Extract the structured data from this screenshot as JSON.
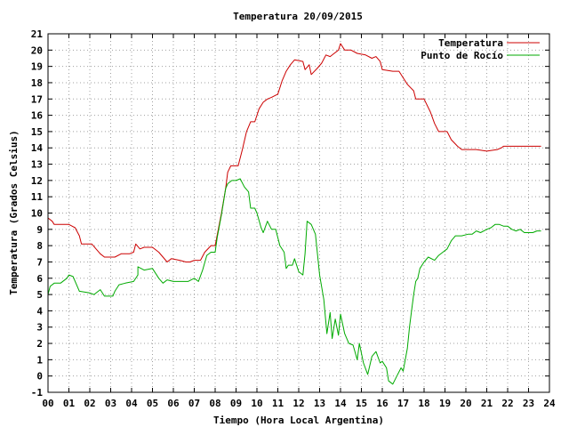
{
  "chart_data": {
    "type": "line",
    "title": "Temperatura 20/09/2015",
    "xlabel": "Tiempo (Hora Local Argentina)",
    "ylabel": "Temperatura (Grados Celsius)",
    "xlim": [
      0,
      24
    ],
    "ylim": [
      -1,
      21
    ],
    "x_ticks": [
      "00",
      "01",
      "02",
      "03",
      "04",
      "05",
      "06",
      "07",
      "08",
      "09",
      "10",
      "11",
      "12",
      "13",
      "14",
      "15",
      "16",
      "17",
      "18",
      "19",
      "20",
      "21",
      "22",
      "23",
      "24"
    ],
    "y_ticks": [
      "-1",
      "0",
      "1",
      "2",
      "3",
      "4",
      "5",
      "6",
      "7",
      "8",
      "9",
      "10",
      "11",
      "12",
      "13",
      "14",
      "15",
      "16",
      "17",
      "18",
      "19",
      "20",
      "21"
    ],
    "grid": true,
    "legend_position": "top-right",
    "series": [
      {
        "name": "Temperatura",
        "color": "#cc0000",
        "points": [
          [
            0,
            9.7
          ],
          [
            0.2,
            9.5
          ],
          [
            0.3,
            9.3
          ],
          [
            1,
            9.3
          ],
          [
            1.3,
            9.1
          ],
          [
            1.5,
            8.6
          ],
          [
            1.6,
            8.1
          ],
          [
            2.1,
            8.1
          ],
          [
            2.3,
            7.8
          ],
          [
            2.5,
            7.5
          ],
          [
            2.7,
            7.3
          ],
          [
            3.2,
            7.3
          ],
          [
            3.5,
            7.5
          ],
          [
            3.9,
            7.5
          ],
          [
            4.1,
            7.6
          ],
          [
            4.2,
            8.1
          ],
          [
            4.4,
            7.8
          ],
          [
            4.6,
            7.9
          ],
          [
            5,
            7.9
          ],
          [
            5.3,
            7.6
          ],
          [
            5.5,
            7.3
          ],
          [
            5.7,
            7.0
          ],
          [
            5.9,
            7.2
          ],
          [
            6.3,
            7.1
          ],
          [
            6.6,
            7.0
          ],
          [
            6.8,
            7.0
          ],
          [
            7,
            7.1
          ],
          [
            7.3,
            7.1
          ],
          [
            7.5,
            7.6
          ],
          [
            7.8,
            8.0
          ],
          [
            8,
            8.0
          ],
          [
            8.3,
            10.0
          ],
          [
            8.5,
            11.5
          ],
          [
            8.6,
            12.5
          ],
          [
            8.75,
            12.9
          ],
          [
            9.1,
            12.9
          ],
          [
            9.3,
            13.9
          ],
          [
            9.5,
            15.0
          ],
          [
            9.7,
            15.6
          ],
          [
            9.9,
            15.6
          ],
          [
            10.1,
            16.4
          ],
          [
            10.3,
            16.8
          ],
          [
            10.5,
            17.0
          ],
          [
            10.7,
            17.1
          ],
          [
            11,
            17.3
          ],
          [
            11.2,
            18.1
          ],
          [
            11.4,
            18.7
          ],
          [
            11.6,
            19.1
          ],
          [
            11.8,
            19.4
          ],
          [
            12.2,
            19.3
          ],
          [
            12.3,
            18.8
          ],
          [
            12.5,
            19.1
          ],
          [
            12.6,
            18.5
          ],
          [
            12.9,
            18.9
          ],
          [
            13.1,
            19.2
          ],
          [
            13.3,
            19.7
          ],
          [
            13.5,
            19.6
          ],
          [
            13.7,
            19.8
          ],
          [
            13.9,
            20.0
          ],
          [
            14,
            20.4
          ],
          [
            14.2,
            20.0
          ],
          [
            14.5,
            20.0
          ],
          [
            14.8,
            19.8
          ],
          [
            15.2,
            19.7
          ],
          [
            15.5,
            19.5
          ],
          [
            15.7,
            19.6
          ],
          [
            15.9,
            19.3
          ],
          [
            16,
            18.8
          ],
          [
            16.5,
            18.7
          ],
          [
            16.8,
            18.7
          ],
          [
            17,
            18.3
          ],
          [
            17.2,
            17.9
          ],
          [
            17.5,
            17.5
          ],
          [
            17.6,
            17.0
          ],
          [
            18,
            17.0
          ],
          [
            18.3,
            16.2
          ],
          [
            18.5,
            15.5
          ],
          [
            18.7,
            15.0
          ],
          [
            19.1,
            15.0
          ],
          [
            19.3,
            14.5
          ],
          [
            19.6,
            14.1
          ],
          [
            19.8,
            13.9
          ],
          [
            20.5,
            13.9
          ],
          [
            21,
            13.8
          ],
          [
            21.5,
            13.9
          ],
          [
            21.7,
            14.0
          ],
          [
            21.8,
            14.1
          ],
          [
            23.6,
            14.1
          ]
        ]
      },
      {
        "name": "Punto de Rocío",
        "color": "#00aa00",
        "points": [
          [
            0,
            5.0
          ],
          [
            0.1,
            5.5
          ],
          [
            0.3,
            5.7
          ],
          [
            0.6,
            5.7
          ],
          [
            0.9,
            6.0
          ],
          [
            1,
            6.2
          ],
          [
            1.2,
            6.1
          ],
          [
            1.5,
            5.2
          ],
          [
            2,
            5.1
          ],
          [
            2.2,
            5.0
          ],
          [
            2.5,
            5.3
          ],
          [
            2.7,
            4.9
          ],
          [
            3.1,
            4.9
          ],
          [
            3.2,
            5.2
          ],
          [
            3.4,
            5.6
          ],
          [
            3.7,
            5.7
          ],
          [
            4.1,
            5.8
          ],
          [
            4.3,
            6.2
          ],
          [
            4.3,
            6.7
          ],
          [
            4.6,
            6.5
          ],
          [
            5,
            6.6
          ],
          [
            5.3,
            6.0
          ],
          [
            5.5,
            5.7
          ],
          [
            5.7,
            5.9
          ],
          [
            6,
            5.8
          ],
          [
            6.2,
            5.8
          ],
          [
            6.5,
            5.8
          ],
          [
            6.7,
            5.8
          ],
          [
            7,
            6.0
          ],
          [
            7.2,
            5.8
          ],
          [
            7.4,
            6.5
          ],
          [
            7.6,
            7.4
          ],
          [
            7.8,
            7.6
          ],
          [
            8,
            7.6
          ],
          [
            8.1,
            8.5
          ],
          [
            8.3,
            9.9
          ],
          [
            8.5,
            11.5
          ],
          [
            8.6,
            11.8
          ],
          [
            8.8,
            12.0
          ],
          [
            9,
            12.0
          ],
          [
            9.2,
            12.1
          ],
          [
            9.4,
            11.6
          ],
          [
            9.6,
            11.3
          ],
          [
            9.7,
            10.3
          ],
          [
            9.9,
            10.3
          ],
          [
            10,
            10.0
          ],
          [
            10.2,
            9.1
          ],
          [
            10.3,
            8.8
          ],
          [
            10.5,
            9.5
          ],
          [
            10.7,
            9.0
          ],
          [
            10.9,
            9.0
          ],
          [
            11.1,
            8.0
          ],
          [
            11.3,
            7.6
          ],
          [
            11.4,
            6.6
          ],
          [
            11.5,
            6.8
          ],
          [
            11.7,
            6.8
          ],
          [
            11.8,
            7.2
          ],
          [
            12,
            6.4
          ],
          [
            12.2,
            6.2
          ],
          [
            12.3,
            7.5
          ],
          [
            12.4,
            9.5
          ],
          [
            12.6,
            9.3
          ],
          [
            12.8,
            8.7
          ],
          [
            13,
            6.2
          ],
          [
            13.2,
            4.7
          ],
          [
            13.35,
            2.6
          ],
          [
            13.5,
            3.9
          ],
          [
            13.6,
            2.3
          ],
          [
            13.75,
            3.5
          ],
          [
            13.9,
            2.5
          ],
          [
            14,
            3.8
          ],
          [
            14.2,
            2.6
          ],
          [
            14.4,
            2.0
          ],
          [
            14.6,
            1.9
          ],
          [
            14.8,
            1.0
          ],
          [
            14.9,
            2.0
          ],
          [
            15.1,
            0.8
          ],
          [
            15.3,
            0.1
          ],
          [
            15.5,
            1.2
          ],
          [
            15.7,
            1.5
          ],
          [
            15.9,
            0.8
          ],
          [
            16,
            0.9
          ],
          [
            16.2,
            0.5
          ],
          [
            16.3,
            -0.3
          ],
          [
            16.5,
            -0.5
          ],
          [
            16.7,
            0.0
          ],
          [
            16.9,
            0.5
          ],
          [
            17,
            0.3
          ],
          [
            17.2,
            1.7
          ],
          [
            17.3,
            3.0
          ],
          [
            17.4,
            4.0
          ],
          [
            17.5,
            5.0
          ],
          [
            17.6,
            5.8
          ],
          [
            17.7,
            6.0
          ],
          [
            17.8,
            6.6
          ],
          [
            18,
            7.0
          ],
          [
            18.2,
            7.3
          ],
          [
            18.5,
            7.1
          ],
          [
            18.7,
            7.4
          ],
          [
            18.9,
            7.6
          ],
          [
            19.1,
            7.8
          ],
          [
            19.3,
            8.3
          ],
          [
            19.5,
            8.6
          ],
          [
            19.8,
            8.6
          ],
          [
            20.1,
            8.7
          ],
          [
            20.3,
            8.7
          ],
          [
            20.5,
            8.9
          ],
          [
            20.7,
            8.8
          ],
          [
            21,
            9.0
          ],
          [
            21.2,
            9.1
          ],
          [
            21.4,
            9.3
          ],
          [
            21.6,
            9.3
          ],
          [
            21.8,
            9.2
          ],
          [
            22,
            9.2
          ],
          [
            22.2,
            9.0
          ],
          [
            22.4,
            8.9
          ],
          [
            22.6,
            9.0
          ],
          [
            22.8,
            8.8
          ],
          [
            23,
            8.8
          ],
          [
            23.2,
            8.8
          ],
          [
            23.4,
            8.9
          ],
          [
            23.6,
            8.9
          ]
        ]
      }
    ]
  }
}
